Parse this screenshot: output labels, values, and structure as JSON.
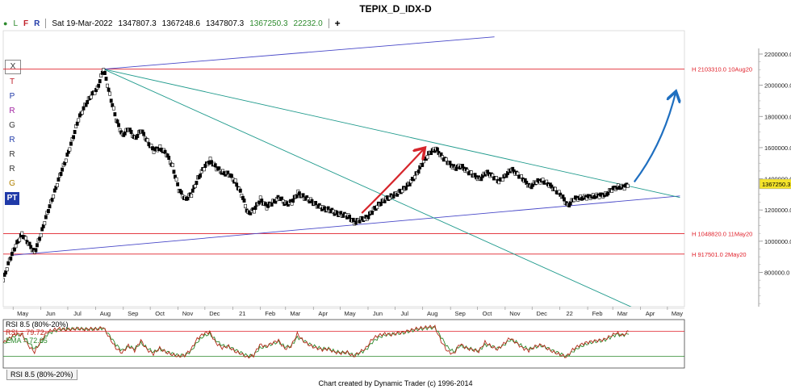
{
  "window_title": "TEPIX_D_IDX-D",
  "info_bar": {
    "flags": [
      "L",
      "F",
      "R"
    ],
    "date": "Sat 19-Mar-2022",
    "open": "1347807.3",
    "high": "1367248.6",
    "low": "1347807.3",
    "close": "1367250.3",
    "change": "22232.0",
    "add_icon": "plus-icon"
  },
  "toolbox_labels": [
    "X",
    "T",
    "P",
    "R",
    "G",
    "R",
    "R",
    "R",
    "G",
    "PT"
  ],
  "footer": "Chart created by Dynamic Trader  (c) 1996-2014",
  "rsi_tab": "RSI 8.5 (80%-20%)",
  "rsi_legend": {
    "title": "RSI 8.5 (80%-20%)",
    "rsi_label": "RSI = ",
    "rsi_value": "79.72",
    "ema_label": "EMA = ",
    "ema_value": "72.65"
  },
  "colors": {
    "bars": "#000000",
    "support_lines": "#e0202a",
    "blue_trendline": "#4848c8",
    "teal_trendline": "#1f9a8c",
    "red_arrow": "#d6262c",
    "blue_arrow": "#1f6fc0",
    "rsi_line": "#b52a1a",
    "ema_line": "#2d8a2d",
    "current_price_box": "#f5e42a"
  },
  "chart_data": {
    "type": "line",
    "title": "TEPIX_D_IDX-D",
    "y_axis": {
      "ticks": [
        800000.0,
        1000000.0,
        1200000.0,
        1400000.0,
        1600000.0,
        1800000.0,
        2000000.0,
        2200000.0
      ],
      "tick_labels": [
        "800000.0",
        "1000000.0",
        "1200000.0",
        "1400000.0",
        "1600000.0",
        "1800000.0",
        "2000000.0",
        "2200000.0"
      ],
      "range": [
        580000,
        2350000
      ],
      "current_price_label": "1367250.3",
      "current_price": 1367250.3
    },
    "x_axis": {
      "tick_labels": [
        "May",
        "Jun",
        "Jul",
        "Aug",
        "Sep",
        "Oct",
        "Nov",
        "Dec",
        "21",
        "Feb",
        "Mar",
        "Apr",
        "May",
        "Jun",
        "Jul",
        "Aug",
        "Sep",
        "Oct",
        "Nov",
        "Dec",
        "22",
        "Feb",
        "Mar",
        "Apr",
        "May"
      ],
      "range": [
        "2020-04-20",
        "2022-05-20"
      ]
    },
    "series": [
      {
        "type": "line",
        "points": [
          [
            "2020-04-20",
            750000
          ],
          [
            "2020-04-27",
            880000
          ],
          [
            "2020-05-04",
            970000
          ],
          [
            "2020-05-11",
            1048820
          ],
          [
            "2020-05-18",
            985000
          ],
          [
            "2020-05-25",
            930000
          ],
          [
            "2020-06-01",
            1040000
          ],
          [
            "2020-06-08",
            1180000
          ],
          [
            "2020-06-15",
            1290000
          ],
          [
            "2020-06-22",
            1420000
          ],
          [
            "2020-06-29",
            1520000
          ],
          [
            "2020-07-06",
            1650000
          ],
          [
            "2020-07-13",
            1780000
          ],
          [
            "2020-07-20",
            1870000
          ],
          [
            "2020-07-27",
            1930000
          ],
          [
            "2020-08-03",
            1980000
          ],
          [
            "2020-08-10",
            2103310
          ],
          [
            "2020-08-17",
            1940000
          ],
          [
            "2020-08-24",
            1780000
          ],
          [
            "2020-08-31",
            1680000
          ],
          [
            "2020-09-07",
            1720000
          ],
          [
            "2020-09-14",
            1660000
          ],
          [
            "2020-09-21",
            1710000
          ],
          [
            "2020-09-28",
            1640000
          ],
          [
            "2020-10-05",
            1580000
          ],
          [
            "2020-10-12",
            1600000
          ],
          [
            "2020-10-19",
            1560000
          ],
          [
            "2020-10-26",
            1480000
          ],
          [
            "2020-11-02",
            1330000
          ],
          [
            "2020-11-09",
            1270000
          ],
          [
            "2020-11-16",
            1300000
          ],
          [
            "2020-11-23",
            1400000
          ],
          [
            "2020-11-30",
            1470000
          ],
          [
            "2020-12-07",
            1520000
          ],
          [
            "2020-12-14",
            1470000
          ],
          [
            "2020-12-21",
            1440000
          ],
          [
            "2020-12-28",
            1430000
          ],
          [
            "2021-01-04",
            1380000
          ],
          [
            "2021-01-11",
            1300000
          ],
          [
            "2021-01-18",
            1180000
          ],
          [
            "2021-01-25",
            1200000
          ],
          [
            "2021-02-01",
            1270000
          ],
          [
            "2021-02-08",
            1220000
          ],
          [
            "2021-02-15",
            1250000
          ],
          [
            "2021-02-22",
            1280000
          ],
          [
            "2021-03-01",
            1240000
          ],
          [
            "2021-03-08",
            1250000
          ],
          [
            "2021-03-15",
            1310000
          ],
          [
            "2021-03-22",
            1280000
          ],
          [
            "2021-03-29",
            1260000
          ],
          [
            "2021-04-05",
            1230000
          ],
          [
            "2021-04-12",
            1210000
          ],
          [
            "2021-04-19",
            1200000
          ],
          [
            "2021-04-26",
            1180000
          ],
          [
            "2021-05-03",
            1170000
          ],
          [
            "2021-05-10",
            1160000
          ],
          [
            "2021-05-17",
            1120000
          ],
          [
            "2021-05-24",
            1140000
          ],
          [
            "2021-05-31",
            1150000
          ],
          [
            "2021-06-07",
            1200000
          ],
          [
            "2021-06-14",
            1240000
          ],
          [
            "2021-06-21",
            1270000
          ],
          [
            "2021-06-28",
            1290000
          ],
          [
            "2021-07-05",
            1310000
          ],
          [
            "2021-07-12",
            1340000
          ],
          [
            "2021-07-19",
            1380000
          ],
          [
            "2021-07-26",
            1440000
          ],
          [
            "2021-08-02",
            1510000
          ],
          [
            "2021-08-09",
            1570000
          ],
          [
            "2021-08-16",
            1590000
          ],
          [
            "2021-08-23",
            1540000
          ],
          [
            "2021-08-30",
            1500000
          ],
          [
            "2021-09-06",
            1470000
          ],
          [
            "2021-09-13",
            1480000
          ],
          [
            "2021-09-20",
            1450000
          ],
          [
            "2021-09-27",
            1420000
          ],
          [
            "2021-10-04",
            1400000
          ],
          [
            "2021-10-11",
            1440000
          ],
          [
            "2021-10-18",
            1420000
          ],
          [
            "2021-10-25",
            1380000
          ],
          [
            "2021-11-01",
            1420000
          ],
          [
            "2021-11-08",
            1460000
          ],
          [
            "2021-11-15",
            1430000
          ],
          [
            "2021-11-22",
            1390000
          ],
          [
            "2021-11-29",
            1350000
          ],
          [
            "2021-12-06",
            1380000
          ],
          [
            "2021-12-13",
            1390000
          ],
          [
            "2021-12-20",
            1360000
          ],
          [
            "2021-12-27",
            1330000
          ],
          [
            "2022-01-03",
            1290000
          ],
          [
            "2022-01-10",
            1230000
          ],
          [
            "2022-01-17",
            1270000
          ],
          [
            "2022-01-24",
            1280000
          ],
          [
            "2022-01-31",
            1280000
          ],
          [
            "2022-02-07",
            1290000
          ],
          [
            "2022-02-14",
            1290000
          ],
          [
            "2022-02-21",
            1300000
          ],
          [
            "2022-02-28",
            1330000
          ],
          [
            "2022-03-07",
            1350000
          ],
          [
            "2022-03-14",
            1345000
          ],
          [
            "2022-03-19",
            1367250
          ]
        ]
      }
    ],
    "horizontal_levels": [
      {
        "value": 2103310.0,
        "label": "H 2103310.0 10Aug20"
      },
      {
        "value": 1048820.0,
        "label": "H 1048820.0 11May20"
      },
      {
        "value": 917501.0,
        "label": "H 917501.0 2May20"
      }
    ],
    "trendlines": [
      {
        "color_key": "blue_trendline",
        "from": [
          "2020-08-10",
          2103310
        ],
        "to": [
          "2021-10-20",
          2310000
        ]
      },
      {
        "color_key": "blue_trendline",
        "from": [
          "2020-05-01",
          910000
        ],
        "to": [
          "2022-05-15",
          1290000
        ]
      },
      {
        "color_key": "teal_trendline",
        "from": [
          "2020-08-10",
          2103310
        ],
        "to": [
          "2022-05-15",
          1280000
        ]
      },
      {
        "color_key": "teal_trendline",
        "from": [
          "2020-08-10",
          2103310
        ],
        "to": [
          "2022-03-25",
          570000
        ]
      }
    ],
    "arrows": [
      {
        "color_key": "red_arrow",
        "from": [
          "2021-05-25",
          1180000
        ],
        "to": [
          "2021-08-02",
          1590000
        ]
      },
      {
        "color_key": "blue_arrow",
        "from": [
          "2022-03-25",
          1380000
        ],
        "to": [
          "2022-05-10",
          1950000
        ]
      }
    ],
    "rsi": {
      "name": "RSI 8.5 (80%-20%)",
      "levels": [
        80,
        20
      ],
      "rsi_last": 79.72,
      "ema_last": 72.65,
      "rsi_values": [
        52,
        64,
        74,
        72,
        46,
        30,
        56,
        78,
        83,
        86,
        84,
        85,
        87,
        84,
        86,
        85,
        89,
        64,
        40,
        28,
        46,
        34,
        58,
        36,
        26,
        40,
        30,
        24,
        20,
        22,
        36,
        62,
        74,
        78,
        52,
        40,
        44,
        32,
        26,
        18,
        22,
        48,
        44,
        52,
        58,
        38,
        44,
        74,
        56,
        46,
        40,
        36,
        38,
        30,
        28,
        30,
        20,
        30,
        40,
        62,
        70,
        74,
        72,
        76,
        78,
        82,
        86,
        88,
        90,
        90,
        56,
        32,
        26,
        50,
        40,
        36,
        32,
        54,
        44,
        36,
        50,
        64,
        52,
        40,
        34,
        44,
        48,
        38,
        30,
        24,
        18,
        36,
        46,
        52,
        56,
        58,
        60,
        68,
        76,
        70,
        79.72
      ],
      "ema_values": [
        50,
        60,
        70,
        72,
        54,
        38,
        52,
        72,
        80,
        84,
        84,
        85,
        86,
        85,
        85,
        86,
        87,
        70,
        48,
        34,
        44,
        38,
        52,
        40,
        30,
        38,
        32,
        27,
        23,
        23,
        32,
        54,
        68,
        74,
        58,
        46,
        44,
        36,
        29,
        22,
        22,
        40,
        43,
        49,
        55,
        43,
        44,
        66,
        58,
        49,
        43,
        38,
        38,
        32,
        29,
        30,
        23,
        28,
        36,
        54,
        65,
        71,
        72,
        74,
        76,
        80,
        84,
        86,
        88,
        89,
        66,
        42,
        31,
        45,
        41,
        37,
        33,
        48,
        45,
        39,
        47,
        59,
        54,
        44,
        37,
        42,
        46,
        40,
        33,
        27,
        20,
        31,
        41,
        48,
        53,
        56,
        58,
        65,
        72,
        71,
        72.65
      ]
    }
  }
}
